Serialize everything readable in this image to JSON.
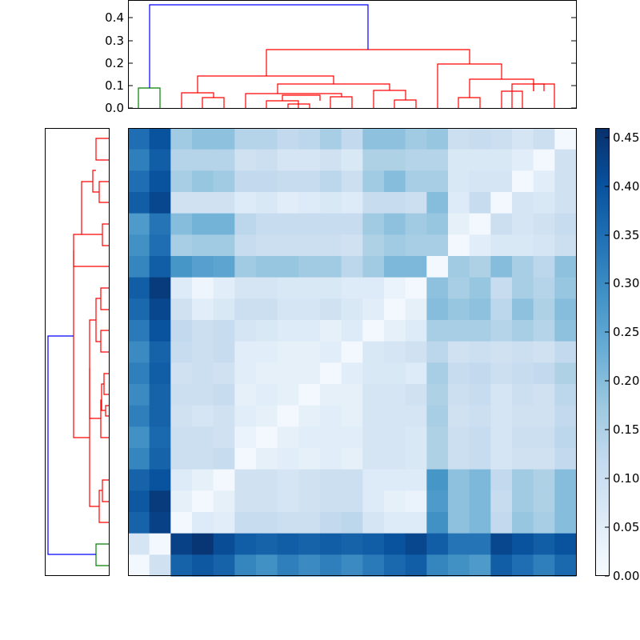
{
  "chart_data": {
    "type": "heatmap",
    "title": "",
    "xlabel": "",
    "ylabel": "",
    "colormap": "Blues",
    "n": 21,
    "matrix_diagonal_orientation": "anti-diagonal (top-right to bottom-left)",
    "values": [
      [
        0.35,
        0.4,
        0.17,
        0.19,
        0.19,
        0.14,
        0.14,
        0.12,
        0.13,
        0.16,
        0.12,
        0.19,
        0.19,
        0.17,
        0.18,
        0.1,
        0.11,
        0.1,
        0.08,
        0.1,
        0.01
      ],
      [
        0.32,
        0.38,
        0.14,
        0.14,
        0.14,
        0.09,
        0.1,
        0.08,
        0.08,
        0.09,
        0.07,
        0.15,
        0.15,
        0.14,
        0.14,
        0.07,
        0.07,
        0.07,
        0.05,
        0.01,
        0.09
      ],
      [
        0.35,
        0.4,
        0.16,
        0.18,
        0.17,
        0.12,
        0.12,
        0.11,
        0.11,
        0.13,
        0.1,
        0.17,
        0.2,
        0.16,
        0.16,
        0.07,
        0.08,
        0.08,
        0.01,
        0.05,
        0.09
      ],
      [
        0.38,
        0.42,
        0.09,
        0.09,
        0.09,
        0.06,
        0.07,
        0.05,
        0.06,
        0.07,
        0.06,
        0.11,
        0.11,
        0.1,
        0.2,
        0.06,
        0.11,
        0.01,
        0.08,
        0.07,
        0.09
      ],
      [
        0.27,
        0.34,
        0.2,
        0.22,
        0.22,
        0.13,
        0.11,
        0.11,
        0.11,
        0.11,
        0.11,
        0.17,
        0.19,
        0.17,
        0.18,
        0.04,
        0.01,
        0.1,
        0.08,
        0.09,
        0.11
      ],
      [
        0.29,
        0.35,
        0.16,
        0.17,
        0.17,
        0.11,
        0.1,
        0.1,
        0.1,
        0.1,
        0.09,
        0.15,
        0.17,
        0.16,
        0.16,
        0.01,
        0.05,
        0.07,
        0.07,
        0.08,
        0.1
      ],
      [
        0.31,
        0.38,
        0.28,
        0.26,
        0.25,
        0.17,
        0.18,
        0.18,
        0.17,
        0.17,
        0.13,
        0.17,
        0.21,
        0.21,
        0.01,
        0.17,
        0.15,
        0.2,
        0.16,
        0.13,
        0.19
      ],
      [
        0.38,
        0.44,
        0.06,
        0.02,
        0.05,
        0.08,
        0.08,
        0.07,
        0.07,
        0.07,
        0.06,
        0.06,
        0.03,
        0.01,
        0.19,
        0.16,
        0.18,
        0.11,
        0.16,
        0.14,
        0.18
      ],
      [
        0.36,
        0.42,
        0.09,
        0.05,
        0.07,
        0.1,
        0.1,
        0.08,
        0.08,
        0.09,
        0.07,
        0.05,
        0.01,
        0.04,
        0.2,
        0.18,
        0.19,
        0.13,
        0.19,
        0.15,
        0.2
      ],
      [
        0.33,
        0.4,
        0.12,
        0.1,
        0.11,
        0.08,
        0.07,
        0.06,
        0.06,
        0.04,
        0.06,
        0.01,
        0.04,
        0.06,
        0.16,
        0.16,
        0.16,
        0.14,
        0.16,
        0.14,
        0.19
      ],
      [
        0.3,
        0.37,
        0.11,
        0.1,
        0.11,
        0.05,
        0.05,
        0.04,
        0.04,
        0.05,
        0.01,
        0.07,
        0.08,
        0.09,
        0.13,
        0.09,
        0.1,
        0.09,
        0.1,
        0.09,
        0.12
      ],
      [
        0.32,
        0.38,
        0.09,
        0.1,
        0.09,
        0.05,
        0.04,
        0.04,
        0.04,
        0.01,
        0.05,
        0.07,
        0.07,
        0.06,
        0.16,
        0.11,
        0.12,
        0.1,
        0.11,
        0.12,
        0.15
      ],
      [
        0.3,
        0.37,
        0.1,
        0.1,
        0.11,
        0.04,
        0.05,
        0.04,
        0.01,
        0.04,
        0.04,
        0.08,
        0.08,
        0.09,
        0.15,
        0.1,
        0.11,
        0.08,
        0.1,
        0.09,
        0.13
      ],
      [
        0.32,
        0.37,
        0.09,
        0.08,
        0.09,
        0.05,
        0.04,
        0.01,
        0.04,
        0.05,
        0.04,
        0.08,
        0.08,
        0.08,
        0.16,
        0.09,
        0.1,
        0.08,
        0.09,
        0.09,
        0.12
      ],
      [
        0.29,
        0.36,
        0.1,
        0.1,
        0.09,
        0.03,
        0.01,
        0.04,
        0.05,
        0.05,
        0.05,
        0.08,
        0.08,
        0.07,
        0.15,
        0.1,
        0.11,
        0.08,
        0.1,
        0.1,
        0.13
      ],
      [
        0.31,
        0.37,
        0.1,
        0.1,
        0.11,
        0.01,
        0.04,
        0.05,
        0.04,
        0.05,
        0.04,
        0.08,
        0.08,
        0.07,
        0.15,
        0.1,
        0.11,
        0.08,
        0.09,
        0.09,
        0.12
      ],
      [
        0.37,
        0.4,
        0.06,
        0.04,
        0.01,
        0.09,
        0.09,
        0.08,
        0.09,
        0.1,
        0.1,
        0.06,
        0.06,
        0.06,
        0.28,
        0.19,
        0.21,
        0.12,
        0.17,
        0.15,
        0.2
      ],
      [
        0.39,
        0.44,
        0.04,
        0.01,
        0.04,
        0.09,
        0.09,
        0.08,
        0.09,
        0.1,
        0.1,
        0.06,
        0.04,
        0.03,
        0.27,
        0.19,
        0.21,
        0.11,
        0.17,
        0.15,
        0.2
      ],
      [
        0.37,
        0.43,
        0.01,
        0.06,
        0.05,
        0.11,
        0.11,
        0.1,
        0.1,
        0.12,
        0.13,
        0.08,
        0.06,
        0.06,
        0.29,
        0.19,
        0.21,
        0.12,
        0.18,
        0.16,
        0.2
      ],
      [
        0.08,
        0.01,
        0.43,
        0.45,
        0.41,
        0.38,
        0.37,
        0.38,
        0.37,
        0.38,
        0.37,
        0.38,
        0.4,
        0.42,
        0.38,
        0.34,
        0.34,
        0.42,
        0.4,
        0.38,
        0.4
      ],
      [
        0.01,
        0.09,
        0.37,
        0.39,
        0.37,
        0.31,
        0.29,
        0.32,
        0.3,
        0.32,
        0.3,
        0.33,
        0.36,
        0.38,
        0.31,
        0.29,
        0.27,
        0.38,
        0.35,
        0.32,
        0.36
      ]
    ],
    "vmin": 0.0,
    "vmax": 0.46,
    "colorbar_ticks": [
      "0.00",
      "0.05",
      "0.10",
      "0.15",
      "0.20",
      "0.25",
      "0.30",
      "0.35",
      "0.40",
      "0.45"
    ],
    "top_dendrogram_yticks": [
      "0.0",
      "0.1",
      "0.2",
      "0.3",
      "0.4"
    ],
    "top_dendrogram_ylim": [
      0,
      0.48
    ],
    "colors": {
      "cluster_a": "#008000",
      "cluster_b": "#ff0000",
      "link_above_threshold": "#0000ff",
      "axes": "#000000"
    }
  }
}
